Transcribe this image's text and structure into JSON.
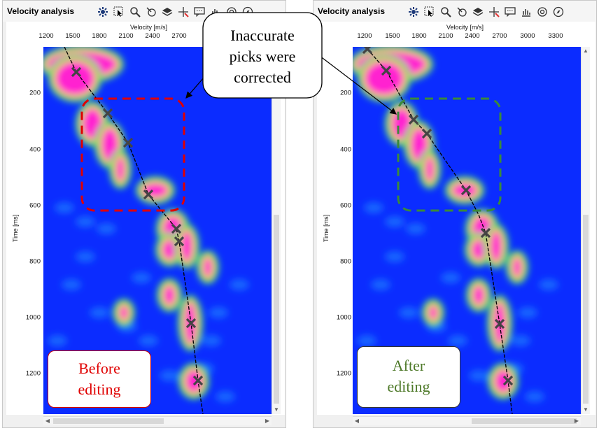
{
  "panels": [
    {
      "title": "Velocity analysis",
      "x_axis_label": "Velocity [m/s]",
      "x_ticks": [
        "1200",
        "1500",
        "1800",
        "2100",
        "2400",
        "2700"
      ],
      "y_axis_label": "Time [ms]",
      "y_ticks": [
        "200",
        "400",
        "600",
        "800",
        "1000",
        "1200"
      ],
      "caption": "Before editing",
      "caption_color": "#e00000",
      "region_color": "#e00000"
    },
    {
      "title": "Velocity analysis",
      "x_axis_label": "Velocity [m/s]",
      "x_ticks": [
        "1200",
        "1500",
        "1800",
        "2100",
        "2400",
        "2700",
        "3000",
        "3300"
      ],
      "y_axis_label": "Time [ms]",
      "y_ticks": [
        "200",
        "400",
        "600",
        "800",
        "1000",
        "1200"
      ],
      "caption": "After editing",
      "caption_color": "#4f7a2a",
      "region_color": "#3a8a3a"
    }
  ],
  "callout": {
    "line1": "Inaccurate",
    "line2": "picks were",
    "line3": "corrected"
  },
  "toolbar_icons": [
    "gear-icon",
    "select-icon",
    "zoom-icon",
    "pick-icon",
    "layers-icon",
    "crosshair-icon",
    "comment-icon",
    "chart-icon",
    "target-icon",
    "compass-icon"
  ],
  "colors": {
    "background": "#0b2cff",
    "pick_marker": "#444444",
    "velocity_curve": "#000000"
  }
}
